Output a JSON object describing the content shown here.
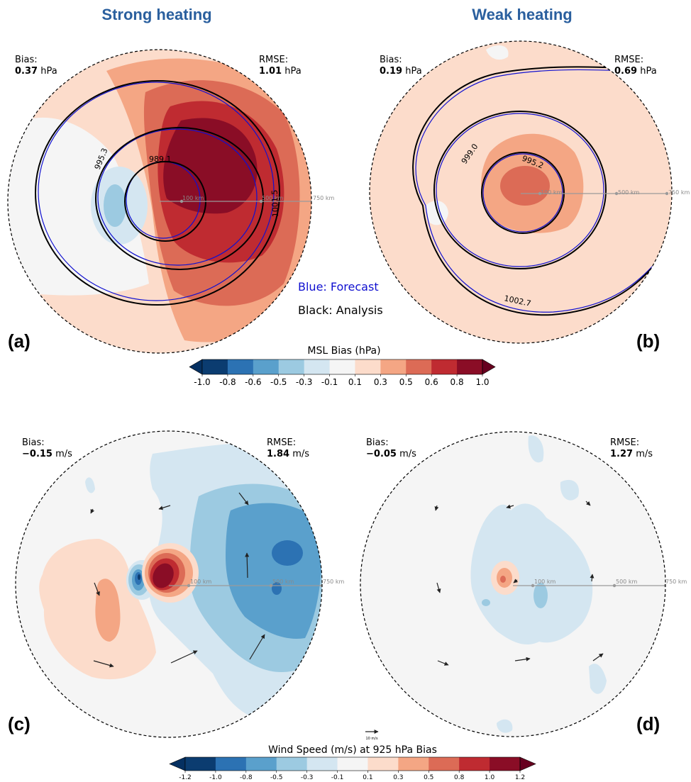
{
  "columns": {
    "left_title": "Strong heating",
    "right_title": "Weak heating"
  },
  "panels": [
    {
      "label": "(a)",
      "bias_label": "Bias:",
      "bias_value": "0.37",
      "bias_unit": " hPa",
      "rmse_label": "RMSE:",
      "rmse_value": "1.01",
      "rmse_unit": " hPa"
    },
    {
      "label": "(b)",
      "bias_label": "Bias:",
      "bias_value": "0.19",
      "bias_unit": " hPa",
      "rmse_label": "RMSE:",
      "rmse_value": "0.69",
      "rmse_unit": " hPa"
    },
    {
      "label": "(c)",
      "bias_label": "Bias:",
      "bias_value": "−0.15",
      "bias_unit": " m/s",
      "rmse_label": "RMSE:",
      "rmse_value": "1.84",
      "rmse_unit": " m/s"
    },
    {
      "label": "(d)",
      "bias_label": "Bias:",
      "bias_value": "−0.05",
      "bias_unit": " m/s",
      "rmse_label": "RMSE:",
      "rmse_value": "1.27",
      "rmse_unit": " m/s"
    }
  ],
  "ring_labels": [
    "100 km",
    "500 km",
    "750 km"
  ],
  "contour_labels": {
    "a": [
      "995.3",
      "989.1",
      "1001.5"
    ],
    "b": [
      "999.0",
      "995.2",
      "1002.7"
    ]
  },
  "legend": {
    "forecast": "Blue: Forecast",
    "analysis": "Black: Analysis"
  },
  "colors": {
    "scale": [
      "#0b3c70",
      "#2c72b3",
      "#5aa0cc",
      "#9ccae1",
      "#d4e6f1",
      "#f5f5f5",
      "#fcdccb",
      "#f4a684",
      "#dc6b56",
      "#bf2b31",
      "#8a0d26",
      "#67001f"
    ],
    "neg_extend": "#053061",
    "forecast": "#1010d0",
    "analysis": "#000000"
  },
  "chart_data": [
    {
      "type": "heatmap",
      "title": "MSL Bias (hPa)",
      "colorbar_ticks": [
        "-1.0",
        "-0.8",
        "-0.6",
        "-0.5",
        "-0.3",
        "-0.1",
        "0.1",
        "0.3",
        "0.5",
        "0.6",
        "0.8",
        "1.0"
      ],
      "panels": [
        "(a)",
        "(b)"
      ],
      "bias": [
        0.37,
        0.19
      ],
      "rmse": [
        1.01,
        0.69
      ],
      "contours_analysis_hPa": [
        [
          989.1,
          995.3,
          1001.5
        ],
        [
          995.2,
          999.0,
          1002.7
        ]
      ]
    },
    {
      "type": "heatmap",
      "title": "Wind Speed (m/s) at 925 hPa Bias",
      "colorbar_ticks": [
        "-1.2",
        "-1.0",
        "-0.8",
        "-0.5",
        "-0.3",
        "-0.1",
        "0.1",
        "0.3",
        "0.5",
        "0.8",
        "1.0",
        "1.2"
      ],
      "panels": [
        "(c)",
        "(d)"
      ],
      "bias": [
        -0.15,
        -0.05
      ],
      "rmse": [
        1.84,
        1.27
      ],
      "vector_key": "10 m/s"
    }
  ]
}
